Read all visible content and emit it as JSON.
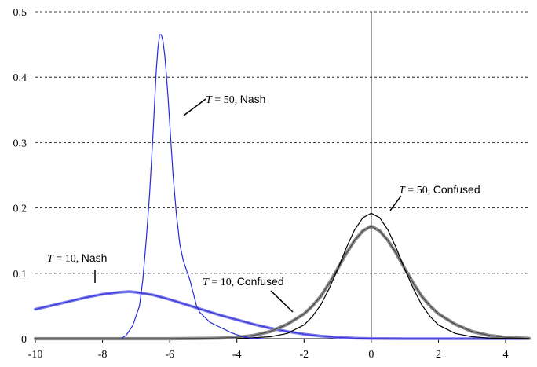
{
  "chart_data": {
    "type": "line",
    "title": "",
    "xlabel": "",
    "ylabel": "",
    "xlim": [
      -10,
      4.7
    ],
    "ylim": [
      0,
      0.5
    ],
    "x_ticks": [
      -10,
      -8,
      -6,
      -4,
      -2,
      0,
      2,
      4
    ],
    "y_ticks": [
      0,
      0.1,
      0.2,
      0.3,
      0.4,
      0.5
    ],
    "x_tick_labels": [
      "-10",
      "-8",
      "-6",
      "-4",
      "-2",
      "0",
      "2",
      "4"
    ],
    "y_tick_labels": [
      "0",
      "0.1",
      "0.2",
      "0.3",
      "0.4",
      "0.5"
    ],
    "grid": "horizontal dashed",
    "vertical_reference_line_x": 0,
    "colors": {
      "nash": "#2a2ad6",
      "nash_light": "#7a78e8",
      "confused": "#000000",
      "confused_wide": "#8c8c8c",
      "grid": "#000000"
    },
    "series": [
      {
        "name": "T = 50, Nash",
        "style": "thin-blue",
        "x": [
          -7.45,
          -7.3,
          -7.1,
          -6.9,
          -6.8,
          -6.7,
          -6.6,
          -6.5,
          -6.45,
          -6.4,
          -6.35,
          -6.3,
          -6.25,
          -6.2,
          -6.15,
          -6.1,
          -6.05,
          -6.0,
          -5.95,
          -5.9,
          -5.8,
          -5.7,
          -5.6,
          -5.5,
          -5.4,
          -5.3,
          -5.2,
          -5.1,
          -5.0,
          -4.8,
          -4.6,
          -4.4,
          -4.2,
          -4.0,
          -3.8,
          -3.6,
          -3.4,
          -3.2
        ],
        "y": [
          0,
          0.005,
          0.02,
          0.05,
          0.09,
          0.15,
          0.22,
          0.31,
          0.36,
          0.41,
          0.445,
          0.465,
          0.465,
          0.455,
          0.435,
          0.405,
          0.37,
          0.33,
          0.29,
          0.25,
          0.19,
          0.145,
          0.12,
          0.105,
          0.09,
          0.07,
          0.05,
          0.04,
          0.035,
          0.025,
          0.02,
          0.015,
          0.01,
          0.006,
          0.003,
          0.001,
          0.0005,
          0
        ]
      },
      {
        "name": "T = 10, Nash",
        "style": "wide-blue",
        "x": [
          -10,
          -9.5,
          -9.0,
          -8.5,
          -8.0,
          -7.5,
          -7.2,
          -7.0,
          -6.5,
          -6.0,
          -5.5,
          -5.0,
          -4.5,
          -4.0,
          -3.5,
          -3.0,
          -2.5,
          -2.0,
          -1.5,
          -1.0,
          -0.5,
          0,
          1,
          2,
          3,
          4,
          4.7
        ],
        "y": [
          0.045,
          0.051,
          0.057,
          0.063,
          0.068,
          0.071,
          0.072,
          0.071,
          0.067,
          0.06,
          0.052,
          0.044,
          0.036,
          0.029,
          0.022,
          0.016,
          0.011,
          0.007,
          0.004,
          0.002,
          0.0008,
          0.0003,
          0,
          0,
          0,
          0,
          0
        ]
      },
      {
        "name": "T = 50, Confused",
        "style": "thin-black",
        "x": [
          -4.0,
          -3.0,
          -2.5,
          -2.0,
          -1.75,
          -1.5,
          -1.25,
          -1.0,
          -0.75,
          -0.5,
          -0.25,
          0,
          0.25,
          0.5,
          0.75,
          1.0,
          1.25,
          1.5,
          1.75,
          2.0,
          2.5,
          3.0,
          3.5,
          4.0,
          4.7
        ],
        "y": [
          0.0,
          0.003,
          0.008,
          0.021,
          0.034,
          0.052,
          0.077,
          0.106,
          0.138,
          0.166,
          0.185,
          0.192,
          0.185,
          0.166,
          0.138,
          0.106,
          0.077,
          0.052,
          0.034,
          0.021,
          0.008,
          0.003,
          0.001,
          0.0003,
          0
        ]
      },
      {
        "name": "T = 10, Confused",
        "style": "wide-gray",
        "x": [
          -10,
          -6,
          -5,
          -4.5,
          -4.0,
          -3.5,
          -3.0,
          -2.5,
          -2.0,
          -1.75,
          -1.5,
          -1.25,
          -1.0,
          -0.75,
          -0.5,
          -0.25,
          0,
          0.25,
          0.5,
          0.75,
          1.0,
          1.25,
          1.5,
          1.75,
          2.0,
          2.5,
          3.0,
          3.5,
          4.0,
          4.7
        ],
        "y": [
          0,
          0,
          0.0005,
          0.001,
          0.002,
          0.005,
          0.011,
          0.022,
          0.038,
          0.05,
          0.065,
          0.085,
          0.107,
          0.13,
          0.15,
          0.165,
          0.172,
          0.165,
          0.15,
          0.13,
          0.107,
          0.085,
          0.065,
          0.05,
          0.038,
          0.022,
          0.011,
          0.005,
          0.002,
          0.0005
        ]
      }
    ],
    "annotations": [
      {
        "italic": "T",
        "eq": " = 50, ",
        "label": "Nash"
      },
      {
        "italic": "T",
        "eq": " = 50, ",
        "label": "Confused"
      },
      {
        "italic": "T",
        "eq": " = 10, ",
        "label": "Nash"
      },
      {
        "italic": "T",
        "eq": " = 10, ",
        "label": "Confused"
      }
    ]
  }
}
